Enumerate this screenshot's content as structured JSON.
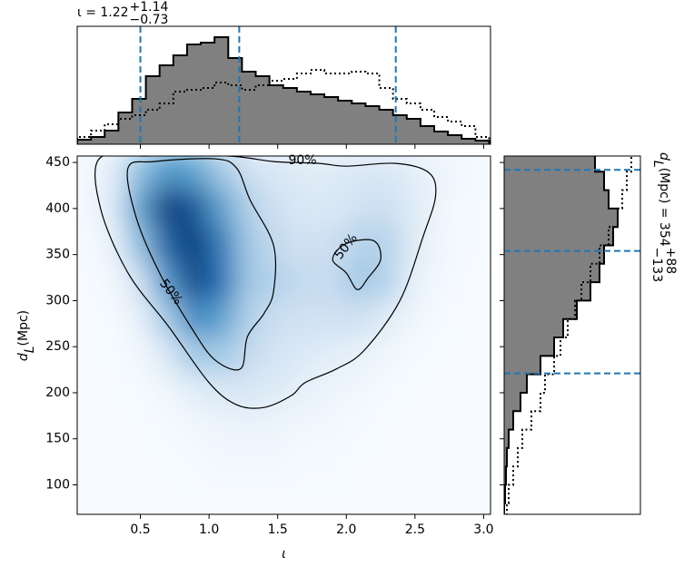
{
  "chart_data": [
    {
      "type": "heatmap",
      "xlabel": "ι",
      "ylabel": "d",
      "ylabel_sub": "L",
      "ylabel_rest": " (Mpc)",
      "xlim": [
        0.04,
        3.05
      ],
      "ylim": [
        68,
        457
      ],
      "xticks": [
        0.5,
        {
          "value": 1,
          "label": "1.0"
        },
        1.5,
        {
          "value": 2,
          "label": "2.0"
        },
        2.5,
        {
          "value": 3,
          "label": "3.0"
        }
      ],
      "yticks": [
        100,
        150,
        200,
        250,
        300,
        350,
        400,
        450
      ],
      "colormap": [
        "#f7fbff",
        "#c6dbef",
        "#6baed6",
        "#2171b5",
        "#08306b"
      ],
      "clim": [
        0,
        1
      ],
      "grid_x": [
        0.1,
        0.3,
        0.5,
        0.7,
        0.9,
        1.1,
        1.3,
        1.5,
        1.7,
        1.9,
        2.1,
        2.3,
        2.5,
        2.7,
        2.9
      ],
      "grid_y": [
        440,
        400,
        360,
        320,
        280,
        240,
        200,
        160,
        120,
        80
      ],
      "density": [
        [
          0.02,
          0.1,
          0.4,
          0.6,
          0.55,
          0.35,
          0.2,
          0.15,
          0.12,
          0.12,
          0.15,
          0.15,
          0.1,
          0.05,
          0.02
        ],
        [
          0.02,
          0.12,
          0.55,
          0.95,
          0.85,
          0.55,
          0.3,
          0.2,
          0.15,
          0.15,
          0.2,
          0.22,
          0.12,
          0.04,
          0.01
        ],
        [
          0.01,
          0.06,
          0.4,
          0.8,
          0.95,
          0.7,
          0.35,
          0.25,
          0.2,
          0.22,
          0.3,
          0.3,
          0.12,
          0.03,
          0.01
        ],
        [
          0,
          0.02,
          0.2,
          0.6,
          0.9,
          0.75,
          0.35,
          0.3,
          0.25,
          0.25,
          0.35,
          0.3,
          0.08,
          0.02,
          0
        ],
        [
          0,
          0.01,
          0.08,
          0.35,
          0.65,
          0.55,
          0.3,
          0.22,
          0.2,
          0.2,
          0.2,
          0.12,
          0.04,
          0.01,
          0
        ],
        [
          0,
          0,
          0.03,
          0.15,
          0.35,
          0.35,
          0.25,
          0.18,
          0.14,
          0.1,
          0.08,
          0.04,
          0.01,
          0,
          0
        ],
        [
          0,
          0,
          0.01,
          0.04,
          0.1,
          0.15,
          0.15,
          0.12,
          0.08,
          0.05,
          0.03,
          0.01,
          0,
          0,
          0
        ],
        [
          0,
          0,
          0,
          0.01,
          0.03,
          0.05,
          0.06,
          0.05,
          0.03,
          0.02,
          0.01,
          0,
          0,
          0,
          0
        ],
        [
          0,
          0,
          0,
          0,
          0.01,
          0.02,
          0.02,
          0.02,
          0.01,
          0.01,
          0,
          0,
          0,
          0,
          0
        ],
        [
          0,
          0,
          0,
          0,
          0,
          0,
          0,
          0,
          0,
          0,
          0,
          0,
          0,
          0,
          0
        ]
      ],
      "contours": [
        {
          "label": "90%",
          "x": [
            0.2,
            0.21,
            0.41,
            0.71,
            1.0,
            1.2,
            1.4,
            1.6,
            1.7,
            1.93,
            2.13,
            2.39,
            2.56,
            2.65,
            2.6,
            2.36,
            2.0,
            1.8,
            1.47,
            1.14,
            0.54
          ],
          "y": [
            454,
            400,
            330,
            271,
            211,
            187,
            184,
            197,
            211,
            226,
            246,
            300,
            370,
            414,
            439,
            449,
            446,
            449,
            451,
            457,
            457
          ]
        },
        {
          "label": "50%",
          "x": [
            0.41,
            0.47,
            0.64,
            0.87,
            1.04,
            1.23,
            1.28,
            1.4,
            1.47,
            1.47,
            1.3,
            1.2,
            1.04,
            0.6
          ],
          "y": [
            444,
            390,
            330,
            271,
            236,
            226,
            261,
            286,
            310,
            360,
            409,
            444,
            454,
            451
          ]
        },
        {
          "label": "50%",
          "x": [
            1.9,
            2.0,
            2.2,
            2.25,
            2.16,
            2.08,
            2.0
          ],
          "y": [
            345,
            362,
            365,
            345,
            325,
            312,
            330
          ]
        }
      ],
      "contour_color": "#000000"
    },
    {
      "type": "histogram",
      "orientation": "vertical",
      "title": "ι = 1.22",
      "title_sup": "+1.14",
      "title_sub": "−0.73",
      "bins": [
        0.04,
        0.14,
        0.24,
        0.34,
        0.44,
        0.54,
        0.64,
        0.74,
        0.84,
        0.94,
        1.04,
        1.14,
        1.24,
        1.34,
        1.44,
        1.54,
        1.64,
        1.74,
        1.84,
        1.94,
        2.04,
        2.14,
        2.24,
        2.34,
        2.44,
        2.54,
        2.64,
        2.74,
        2.84,
        2.94,
        3.04
      ],
      "posterior": [
        5,
        8,
        15,
        35,
        50,
        75,
        87,
        98,
        110,
        112,
        118,
        95,
        80,
        75,
        65,
        62,
        58,
        55,
        52,
        48,
        45,
        42,
        38,
        32,
        28,
        20,
        14,
        10,
        6,
        4
      ],
      "prior": [
        8,
        15,
        22,
        28,
        32,
        38,
        45,
        58,
        60,
        62,
        68,
        65,
        60,
        65,
        70,
        72,
        78,
        82,
        78,
        78,
        80,
        78,
        62,
        50,
        45,
        38,
        30,
        25,
        20,
        8
      ],
      "xlim": [
        0.04,
        3.05
      ],
      "ylim": [
        0,
        130
      ],
      "lines": [
        0.5,
        1.22,
        2.36
      ],
      "fill": "#808080",
      "edge": "#000000",
      "line_color": "#1f77b4"
    },
    {
      "type": "histogram",
      "orientation": "horizontal",
      "label": "d",
      "label_sub": "L",
      "label_rest": " (Mpc) = 354",
      "label_sup": "+88",
      "label_subscript": "−133",
      "bins": [
        60,
        80,
        100,
        120,
        140,
        160,
        180,
        200,
        220,
        240,
        260,
        280,
        300,
        320,
        340,
        360,
        380,
        400,
        420,
        440,
        460
      ],
      "posterior": [
        0,
        1,
        2,
        3,
        5,
        10,
        18,
        25,
        40,
        55,
        65,
        80,
        95,
        105,
        110,
        120,
        125,
        115,
        110,
        100
      ],
      "prior": [
        3,
        5,
        10,
        15,
        20,
        30,
        40,
        45,
        55,
        62,
        70,
        78,
        85,
        95,
        105,
        115,
        125,
        130,
        135,
        140
      ],
      "xlim": [
        0,
        150
      ],
      "ylim": [
        68,
        457
      ],
      "lines": [
        442,
        354,
        221
      ],
      "fill": "#808080",
      "edge": "#000000",
      "line_color": "#1f77b4"
    }
  ]
}
